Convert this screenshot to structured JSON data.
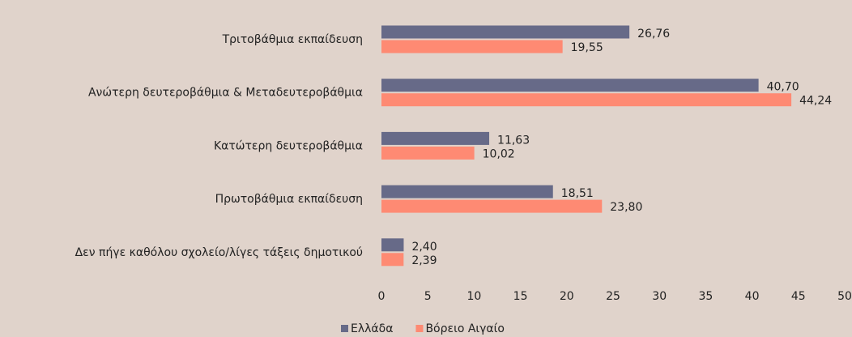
{
  "chart_data": {
    "type": "hbar",
    "categories": [
      "Τριτοβάθμια εκπαίδευση",
      "Ανώτερη δευτεροβάθμια & Μεταδευτεροβάθμια",
      "Κατώτερη δευτεροβάθμια",
      "Πρωτοβάθμια εκπαίδευση",
      "Δεν πήγε καθόλου σχολείο/λίγες τάξεις δημοτικού"
    ],
    "series": [
      {
        "name": "Ελλάδα",
        "color": "#676a88",
        "values": [
          26.76,
          40.7,
          11.63,
          18.51,
          2.4
        ],
        "value_labels": [
          "26,76",
          "40,70",
          "11,63",
          "18,51",
          "2,40"
        ]
      },
      {
        "name": "Βόρειο Αιγαίο",
        "color": "#fe8a73",
        "values": [
          19.55,
          44.24,
          10.02,
          23.8,
          2.39
        ],
        "value_labels": [
          "19,55",
          "44,24",
          "10,02",
          "23,80",
          "2,39"
        ]
      }
    ],
    "xlim": [
      0,
      50
    ],
    "xticks": [
      0,
      5,
      10,
      15,
      20,
      25,
      30,
      35,
      40,
      45,
      50
    ],
    "grid": false,
    "legend": "bottom"
  }
}
